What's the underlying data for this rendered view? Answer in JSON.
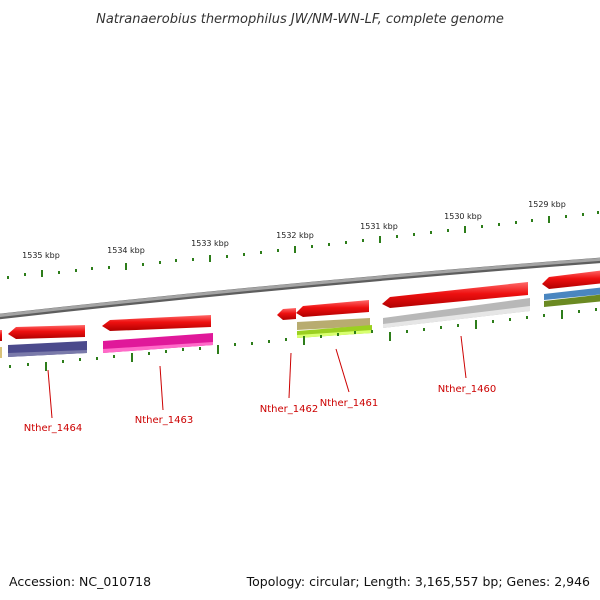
{
  "title": "Natranaerobius thermophilus JW/NM-WN-LF, complete genome",
  "footer": {
    "accession": "Accession: NC_010718",
    "summary": "Topology: circular; Length: 3,165,557 bp; Genes: 2,946"
  },
  "colors": {
    "backbone": "#888888",
    "tick": "#2d7d1a",
    "cds_forward": "#e81010",
    "label": "#cc0000"
  },
  "kbp_labels": [
    "1535 kbp",
    "1534 kbp",
    "1533 kbp",
    "1532 kbp",
    "1531 kbp",
    "1530 kbp",
    "1529 kbp"
  ],
  "genes": [
    {
      "name": "Nther_1464",
      "cog_color": "#4b4a8c"
    },
    {
      "name": "Nther_1463",
      "cog_color": "#e0189a"
    },
    {
      "name": "Nther_1462",
      "cog_color": null
    },
    {
      "name": "Nther_1461",
      "cog_color": "#9bd020"
    },
    {
      "name": "Nther_1460",
      "cog_color": "#b8b8b8"
    }
  ]
}
